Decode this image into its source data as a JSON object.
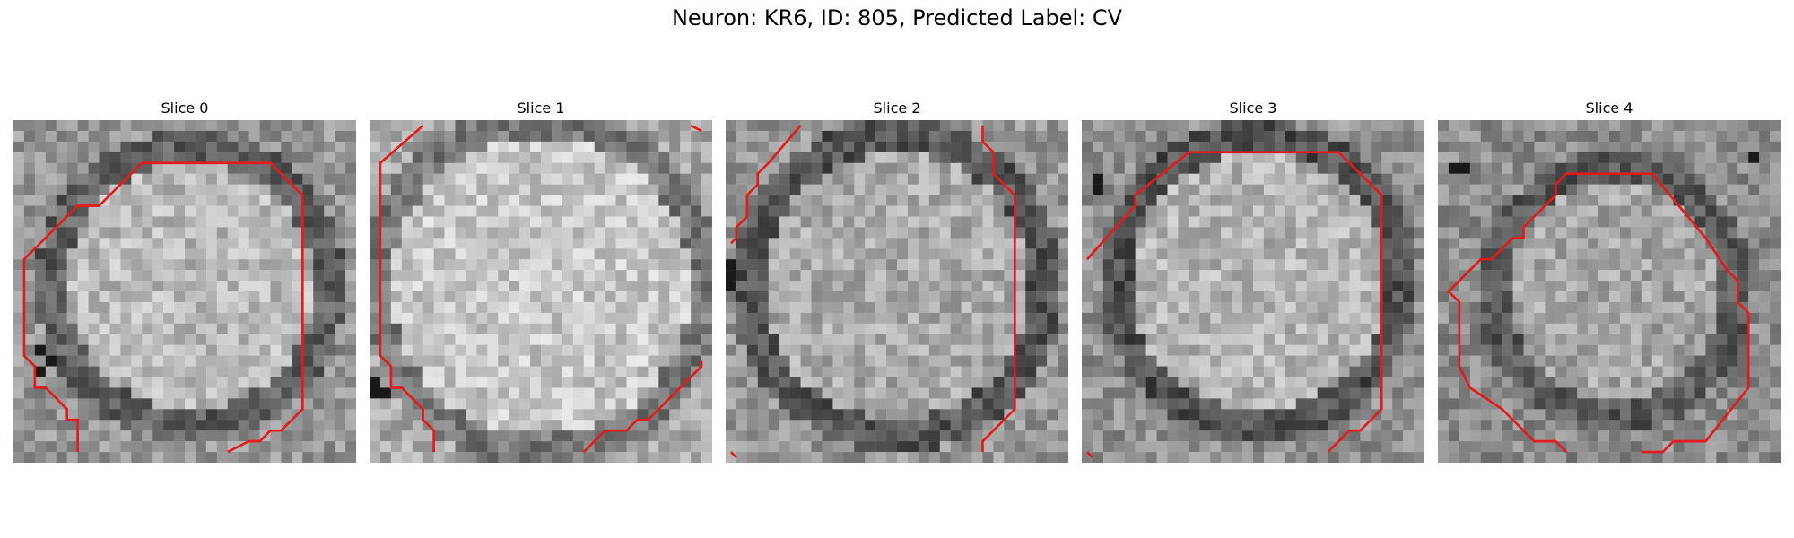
{
  "figure": {
    "title": "Neuron: KR6, ID: 805, Predicted Label: CV"
  },
  "panels": [
    {
      "title": "Slice 0"
    },
    {
      "title": "Slice 1"
    },
    {
      "title": "Slice 2"
    },
    {
      "title": "Slice 3"
    },
    {
      "title": "Slice 4"
    }
  ],
  "colors": {
    "contour": "#e41a1c",
    "background": "#ffffff"
  },
  "image": {
    "type": "grayscale pixel grid with red contour overlay",
    "grid_size": 32
  }
}
